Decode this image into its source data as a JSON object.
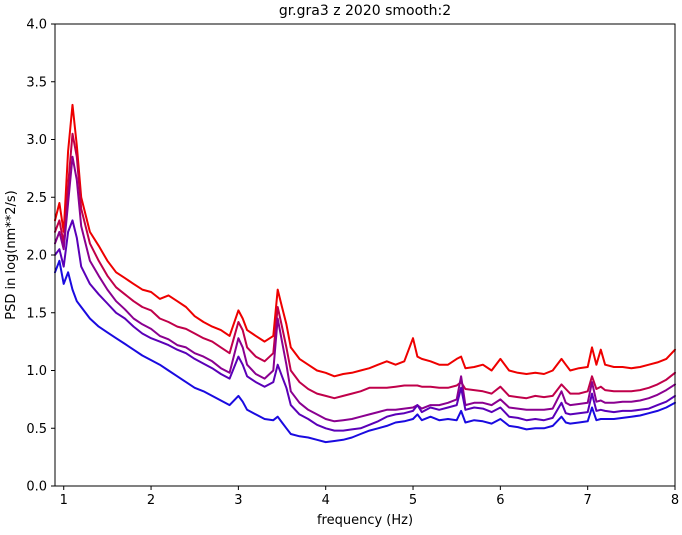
{
  "chart_data": {
    "type": "line",
    "title": "gr.gra3 z 2020 smooth:2",
    "xlabel": "frequency (Hz)",
    "ylabel": "PSD in log(nm**2/s)",
    "xlim": [
      0.9,
      8.0
    ],
    "ylim": [
      0.0,
      4.0
    ],
    "xticks": [
      1,
      2,
      3,
      4,
      5,
      6,
      7,
      8
    ],
    "xtick_labels": [
      "1",
      "2",
      "3",
      "4",
      "5",
      "6",
      "7",
      "8"
    ],
    "yticks": [
      0.0,
      0.5,
      1.0,
      1.5,
      2.0,
      2.5,
      3.0,
      3.5,
      4.0
    ],
    "ytick_labels": [
      "0.0",
      "0.5",
      "1.0",
      "1.5",
      "2.0",
      "2.5",
      "3.0",
      "3.5",
      "4.0"
    ],
    "grid": false,
    "legend": "none",
    "x": [
      0.9,
      0.95,
      1.0,
      1.05,
      1.1,
      1.15,
      1.2,
      1.3,
      1.4,
      1.5,
      1.6,
      1.7,
      1.8,
      1.9,
      2.0,
      2.1,
      2.2,
      2.3,
      2.4,
      2.5,
      2.6,
      2.7,
      2.8,
      2.9,
      3.0,
      3.05,
      3.1,
      3.2,
      3.3,
      3.4,
      3.45,
      3.5,
      3.55,
      3.6,
      3.7,
      3.8,
      3.9,
      4.0,
      4.1,
      4.2,
      4.3,
      4.4,
      4.5,
      4.6,
      4.7,
      4.8,
      4.9,
      5.0,
      5.05,
      5.1,
      5.2,
      5.3,
      5.4,
      5.5,
      5.55,
      5.6,
      5.7,
      5.8,
      5.9,
      6.0,
      6.1,
      6.2,
      6.3,
      6.4,
      6.5,
      6.6,
      6.7,
      6.75,
      6.8,
      6.9,
      7.0,
      7.05,
      7.1,
      7.15,
      7.2,
      7.3,
      7.4,
      7.5,
      7.6,
      7.7,
      7.8,
      7.9,
      8.0
    ],
    "series": [
      {
        "color": "#ee0000",
        "values": [
          2.3,
          2.45,
          2.2,
          2.9,
          3.3,
          2.95,
          2.5,
          2.2,
          2.08,
          1.95,
          1.85,
          1.8,
          1.75,
          1.7,
          1.68,
          1.62,
          1.65,
          1.6,
          1.55,
          1.47,
          1.42,
          1.38,
          1.35,
          1.3,
          1.52,
          1.45,
          1.35,
          1.3,
          1.25,
          1.3,
          1.7,
          1.55,
          1.4,
          1.2,
          1.1,
          1.05,
          1.0,
          0.98,
          0.95,
          0.97,
          0.98,
          1.0,
          1.02,
          1.05,
          1.08,
          1.05,
          1.08,
          1.28,
          1.12,
          1.1,
          1.08,
          1.05,
          1.05,
          1.1,
          1.12,
          1.02,
          1.03,
          1.05,
          1.0,
          1.1,
          1.0,
          0.98,
          0.97,
          0.98,
          0.97,
          1.0,
          1.1,
          1.05,
          1.0,
          1.02,
          1.03,
          1.2,
          1.05,
          1.18,
          1.05,
          1.03,
          1.03,
          1.02,
          1.03,
          1.05,
          1.07,
          1.1,
          1.18
        ]
      },
      {
        "color": "#c0004a",
        "values": [
          2.2,
          2.3,
          2.1,
          2.6,
          3.05,
          2.85,
          2.4,
          2.1,
          1.95,
          1.82,
          1.72,
          1.66,
          1.6,
          1.55,
          1.52,
          1.45,
          1.42,
          1.38,
          1.36,
          1.32,
          1.28,
          1.25,
          1.2,
          1.15,
          1.42,
          1.35,
          1.2,
          1.12,
          1.08,
          1.15,
          1.55,
          1.38,
          1.2,
          1.0,
          0.9,
          0.84,
          0.8,
          0.78,
          0.76,
          0.78,
          0.8,
          0.82,
          0.85,
          0.85,
          0.85,
          0.86,
          0.87,
          0.87,
          0.87,
          0.86,
          0.86,
          0.85,
          0.85,
          0.87,
          0.9,
          0.84,
          0.83,
          0.82,
          0.8,
          0.86,
          0.78,
          0.77,
          0.76,
          0.78,
          0.77,
          0.78,
          0.88,
          0.84,
          0.8,
          0.8,
          0.82,
          0.95,
          0.84,
          0.86,
          0.83,
          0.82,
          0.82,
          0.82,
          0.83,
          0.85,
          0.88,
          0.92,
          0.98
        ]
      },
      {
        "color": "#8a0090",
        "values": [
          2.1,
          2.2,
          2.05,
          2.45,
          2.85,
          2.65,
          2.25,
          1.95,
          1.82,
          1.7,
          1.6,
          1.53,
          1.45,
          1.4,
          1.36,
          1.3,
          1.27,
          1.22,
          1.2,
          1.15,
          1.12,
          1.08,
          1.02,
          0.98,
          1.28,
          1.2,
          1.05,
          0.97,
          0.93,
          1.0,
          1.45,
          1.25,
          1.05,
          0.82,
          0.72,
          0.66,
          0.62,
          0.58,
          0.56,
          0.57,
          0.58,
          0.6,
          0.62,
          0.64,
          0.66,
          0.66,
          0.67,
          0.68,
          0.7,
          0.67,
          0.7,
          0.7,
          0.72,
          0.75,
          0.95,
          0.7,
          0.72,
          0.72,
          0.7,
          0.75,
          0.68,
          0.67,
          0.66,
          0.66,
          0.66,
          0.67,
          0.82,
          0.72,
          0.7,
          0.71,
          0.72,
          0.9,
          0.73,
          0.74,
          0.72,
          0.72,
          0.73,
          0.73,
          0.74,
          0.76,
          0.79,
          0.83,
          0.88
        ]
      },
      {
        "color": "#5a00b8",
        "values": [
          2.0,
          2.05,
          1.9,
          2.2,
          2.3,
          2.15,
          1.9,
          1.75,
          1.66,
          1.58,
          1.5,
          1.45,
          1.38,
          1.32,
          1.28,
          1.25,
          1.22,
          1.18,
          1.15,
          1.1,
          1.06,
          1.02,
          0.97,
          0.93,
          1.12,
          1.05,
          0.95,
          0.9,
          0.86,
          0.9,
          1.05,
          0.95,
          0.85,
          0.7,
          0.62,
          0.58,
          0.53,
          0.5,
          0.48,
          0.48,
          0.49,
          0.5,
          0.53,
          0.56,
          0.6,
          0.62,
          0.63,
          0.65,
          0.7,
          0.64,
          0.68,
          0.66,
          0.68,
          0.7,
          0.85,
          0.66,
          0.68,
          0.67,
          0.64,
          0.68,
          0.6,
          0.59,
          0.57,
          0.58,
          0.57,
          0.59,
          0.72,
          0.63,
          0.62,
          0.63,
          0.64,
          0.8,
          0.65,
          0.66,
          0.65,
          0.64,
          0.65,
          0.65,
          0.66,
          0.67,
          0.7,
          0.73,
          0.78
        ]
      },
      {
        "color": "#1a0ae0",
        "values": [
          1.85,
          1.95,
          1.75,
          1.85,
          1.7,
          1.6,
          1.55,
          1.45,
          1.38,
          1.33,
          1.28,
          1.23,
          1.18,
          1.13,
          1.09,
          1.05,
          1.0,
          0.95,
          0.9,
          0.85,
          0.82,
          0.78,
          0.74,
          0.7,
          0.78,
          0.73,
          0.66,
          0.62,
          0.58,
          0.57,
          0.6,
          0.55,
          0.5,
          0.45,
          0.43,
          0.42,
          0.4,
          0.38,
          0.39,
          0.4,
          0.42,
          0.45,
          0.48,
          0.5,
          0.52,
          0.55,
          0.56,
          0.58,
          0.62,
          0.57,
          0.6,
          0.57,
          0.58,
          0.57,
          0.65,
          0.55,
          0.57,
          0.56,
          0.54,
          0.58,
          0.52,
          0.51,
          0.49,
          0.5,
          0.5,
          0.52,
          0.6,
          0.55,
          0.54,
          0.55,
          0.56,
          0.68,
          0.57,
          0.58,
          0.58,
          0.58,
          0.59,
          0.6,
          0.61,
          0.63,
          0.65,
          0.68,
          0.72
        ]
      }
    ]
  }
}
